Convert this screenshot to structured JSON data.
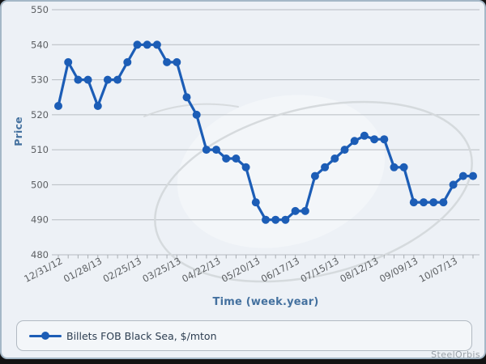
{
  "chart_data": {
    "type": "line",
    "title": "",
    "xlabel": "Time (week.year)",
    "ylabel": "Price",
    "x": [
      "12/31/12",
      "01/07/13",
      "01/14/13",
      "01/21/13",
      "01/28/13",
      "02/04/13",
      "02/11/13",
      "02/18/13",
      "02/25/13",
      "03/04/13",
      "03/11/13",
      "03/18/13",
      "03/25/13",
      "04/01/13",
      "04/08/13",
      "04/15/13",
      "04/22/13",
      "04/29/13",
      "05/06/13",
      "05/13/13",
      "05/20/13",
      "05/27/13",
      "06/03/13",
      "06/10/13",
      "06/17/13",
      "06/24/13",
      "07/01/13",
      "07/08/13",
      "07/15/13",
      "07/22/13",
      "07/29/13",
      "08/05/13",
      "08/12/13",
      "08/19/13",
      "08/26/13",
      "09/02/13",
      "09/09/13",
      "09/16/13",
      "09/23/13",
      "09/30/13",
      "10/07/13",
      "10/14/13",
      "10/21/13"
    ],
    "series": [
      {
        "name": "Billets FOB Black Sea, $/mton",
        "values": [
          522.5,
          535,
          530,
          530,
          522.5,
          530,
          530,
          535,
          540,
          540,
          540,
          535,
          535,
          525,
          520,
          510,
          510,
          507.5,
          507.5,
          505,
          495,
          490,
          490,
          490,
          492.5,
          492.5,
          502.5,
          505,
          507.5,
          510,
          512.5,
          514,
          513,
          513,
          505,
          505,
          495,
          495,
          495,
          495,
          500,
          502.5,
          502.5
        ]
      }
    ],
    "ylim": [
      480,
      550
    ],
    "yticks": [
      480,
      490,
      500,
      510,
      520,
      530,
      540,
      550
    ],
    "xtick_labels": [
      "12/31/12",
      "01/28/13",
      "02/25/13",
      "03/25/13",
      "04/22/13",
      "05/20/13",
      "06/17/13",
      "07/15/13",
      "08/12/13",
      "09/09/13",
      "10/07/13"
    ],
    "xtick_every": 4,
    "xtick_rotation": -28,
    "grid": true,
    "legend_position": "bottom",
    "marker": "circle"
  },
  "footer": {
    "brand_text": "SteelOrbis"
  },
  "colors": {
    "line": "#1c5db6",
    "grid": "#b7bcc1",
    "minor_tick": "#a8adb2",
    "axis_tick_text": "#5d6063",
    "axis_title_text": "#44719f",
    "legend_text": "#2d3e51",
    "legend_border": "#b2bac2",
    "panel_background": "#edf1f6",
    "panel_border": "#a5b8c7",
    "footer_text": "#99a1a8",
    "watermark_line": "#d4d8db",
    "watermark_fill": "#f3f6f9"
  }
}
